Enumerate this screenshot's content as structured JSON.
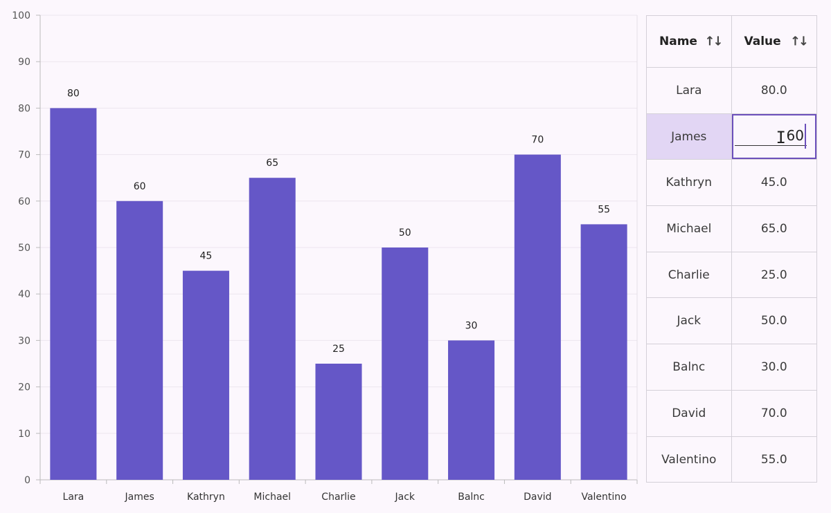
{
  "chart_data": {
    "type": "bar",
    "categories": [
      "Lara",
      "James",
      "Kathryn",
      "Michael",
      "Charlie",
      "Jack",
      "Balnc",
      "David",
      "Valentino"
    ],
    "values": [
      80,
      60,
      45,
      65,
      25,
      50,
      30,
      70,
      55
    ],
    "data_labels": [
      "80",
      "60",
      "45",
      "65",
      "25",
      "50",
      "30",
      "70",
      "55"
    ],
    "ylim": [
      0,
      100
    ],
    "yticks": [
      0,
      10,
      20,
      30,
      40,
      50,
      60,
      70,
      80,
      90,
      100
    ],
    "ytick_labels": [
      "0",
      "10",
      "20",
      "30",
      "40",
      "50",
      "60",
      "70",
      "80",
      "90",
      "100"
    ],
    "grid": true,
    "bar_color": "#6557c7"
  },
  "grid": {
    "headers": {
      "name": "Name",
      "value": "Value",
      "sort_icon": "sort-arrows-icon"
    },
    "rows": [
      {
        "name": "Lara",
        "value": "80.0"
      },
      {
        "name": "James",
        "value": "60"
      },
      {
        "name": "Kathryn",
        "value": "45.0"
      },
      {
        "name": "Michael",
        "value": "65.0"
      },
      {
        "name": "Charlie",
        "value": "25.0"
      },
      {
        "name": "Jack",
        "value": "50.0"
      },
      {
        "name": "Balnc",
        "value": "30.0"
      },
      {
        "name": "David",
        "value": "70.0"
      },
      {
        "name": "Valentino",
        "value": "55.0"
      }
    ],
    "editing_row": 1,
    "selection_color": "#e2d6f4",
    "edit_border_color": "#6b4fbb"
  }
}
